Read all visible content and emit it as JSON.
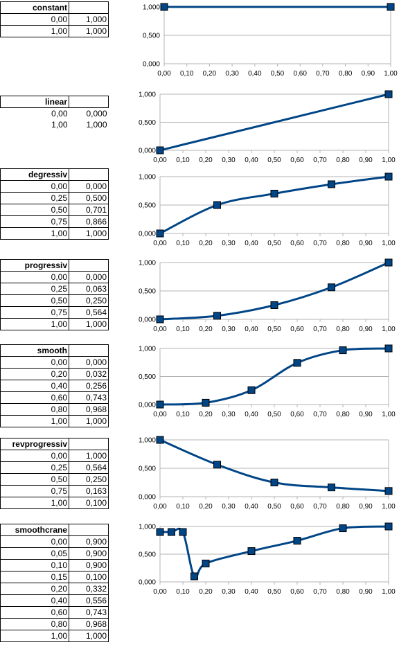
{
  "chart_data": [
    {
      "type": "line",
      "name_label": "constant",
      "rows": [
        [
          "0,00",
          "1,000"
        ],
        [
          "1,00",
          "1,000"
        ]
      ],
      "x": [
        0,
        1
      ],
      "y": [
        1,
        1
      ],
      "xlim": [
        0,
        1
      ],
      "ylim": [
        0,
        1
      ],
      "xticks": [
        "0,00",
        "0,10",
        "0,20",
        "0,30",
        "0,40",
        "0,50",
        "0,60",
        "0,70",
        "0,80",
        "0,90",
        "1,00"
      ],
      "yticks": [
        "0,000",
        "0,500",
        "1,000"
      ],
      "grid": true
    },
    {
      "type": "line",
      "name_label": "linear",
      "rows": [
        [
          "0,00",
          "0,000"
        ],
        [
          "1,00",
          "1,000"
        ]
      ],
      "x": [
        0,
        1
      ],
      "y": [
        0,
        1
      ],
      "xlim": [
        0,
        1
      ],
      "ylim": [
        0,
        1
      ],
      "xticks": [
        "0,00",
        "0,10",
        "0,20",
        "0,30",
        "0,40",
        "0,50",
        "0,60",
        "0,70",
        "0,80",
        "0,90",
        "1,00"
      ],
      "yticks": [
        "0,000",
        "0,500",
        "1,000"
      ],
      "grid": true
    },
    {
      "type": "line",
      "name_label": "degressiv",
      "rows": [
        [
          "0,00",
          "0,000"
        ],
        [
          "0,25",
          "0,500"
        ],
        [
          "0,50",
          "0,701"
        ],
        [
          "0,75",
          "0,866"
        ],
        [
          "1,00",
          "1,000"
        ]
      ],
      "x": [
        0,
        0.25,
        0.5,
        0.75,
        1
      ],
      "y": [
        0,
        0.5,
        0.701,
        0.866,
        1
      ],
      "xlim": [
        0,
        1
      ],
      "ylim": [
        0,
        1
      ],
      "xticks": [
        "0,00",
        "0,10",
        "0,20",
        "0,30",
        "0,40",
        "0,50",
        "0,60",
        "0,70",
        "0,80",
        "0,90",
        "1,00"
      ],
      "yticks": [
        "0,000",
        "0,500",
        "1,000"
      ],
      "grid": true
    },
    {
      "type": "line",
      "name_label": "progressiv",
      "rows": [
        [
          "0,00",
          "0,000"
        ],
        [
          "0,25",
          "0,063"
        ],
        [
          "0,50",
          "0,250"
        ],
        [
          "0,75",
          "0,564"
        ],
        [
          "1,00",
          "1,000"
        ]
      ],
      "x": [
        0,
        0.25,
        0.5,
        0.75,
        1
      ],
      "y": [
        0,
        0.063,
        0.25,
        0.564,
        1
      ],
      "xlim": [
        0,
        1
      ],
      "ylim": [
        0,
        1
      ],
      "xticks": [
        "0,00",
        "0,10",
        "0,20",
        "0,30",
        "0,40",
        "0,50",
        "0,60",
        "0,70",
        "0,80",
        "0,90",
        "1,00"
      ],
      "yticks": [
        "0,000",
        "0,500",
        "1,000"
      ],
      "grid": true
    },
    {
      "type": "line",
      "name_label": "smooth",
      "rows": [
        [
          "0,00",
          "0,000"
        ],
        [
          "0,20",
          "0,032"
        ],
        [
          "0,40",
          "0,256"
        ],
        [
          "0,60",
          "0,743"
        ],
        [
          "0,80",
          "0,968"
        ],
        [
          "1,00",
          "1,000"
        ]
      ],
      "x": [
        0,
        0.2,
        0.4,
        0.6,
        0.8,
        1
      ],
      "y": [
        0,
        0.032,
        0.256,
        0.743,
        0.968,
        1
      ],
      "xlim": [
        0,
        1
      ],
      "ylim": [
        0,
        1
      ],
      "xticks": [
        "0,00",
        "0,10",
        "0,20",
        "0,30",
        "0,40",
        "0,50",
        "0,60",
        "0,70",
        "0,80",
        "0,90",
        "1,00"
      ],
      "yticks": [
        "0,000",
        "0,500",
        "1,000"
      ],
      "grid": true
    },
    {
      "type": "line",
      "name_label": "revprogressiv",
      "rows": [
        [
          "0,00",
          "1,000"
        ],
        [
          "0,25",
          "0,564"
        ],
        [
          "0,50",
          "0,250"
        ],
        [
          "0,75",
          "0,163"
        ],
        [
          "1,00",
          "0,100"
        ]
      ],
      "x": [
        0,
        0.25,
        0.5,
        0.75,
        1
      ],
      "y": [
        1,
        0.564,
        0.25,
        0.163,
        0.1
      ],
      "xlim": [
        0,
        1
      ],
      "ylim": [
        0,
        1
      ],
      "xticks": [
        "0,00",
        "0,10",
        "0,20",
        "0,30",
        "0,40",
        "0,50",
        "0,60",
        "0,70",
        "0,80",
        "0,90",
        "1,00"
      ],
      "yticks": [
        "0,000",
        "0,500",
        "1,000"
      ],
      "grid": true
    },
    {
      "type": "line",
      "name_label": "smoothcrane",
      "rows": [
        [
          "0,00",
          "0,900"
        ],
        [
          "0,05",
          "0,900"
        ],
        [
          "0,10",
          "0,900"
        ],
        [
          "0,15",
          "0,100"
        ],
        [
          "0,20",
          "0,332"
        ],
        [
          "0,40",
          "0,556"
        ],
        [
          "0,60",
          "0,743"
        ],
        [
          "0,80",
          "0,968"
        ],
        [
          "1,00",
          "1,000"
        ]
      ],
      "x": [
        0,
        0.05,
        0.1,
        0.15,
        0.2,
        0.4,
        0.6,
        0.8,
        1
      ],
      "y": [
        0.9,
        0.9,
        0.9,
        0.1,
        0.332,
        0.556,
        0.743,
        0.968,
        1
      ],
      "xlim": [
        0,
        1
      ],
      "ylim": [
        0,
        1
      ],
      "xticks": [
        "0,00",
        "0,10",
        "0,20",
        "0,30",
        "0,40",
        "0,50",
        "0,60",
        "0,70",
        "0,80",
        "0,90",
        "1,00"
      ],
      "yticks": [
        "0,000",
        "0,500",
        "1,000"
      ],
      "grid": true
    }
  ]
}
